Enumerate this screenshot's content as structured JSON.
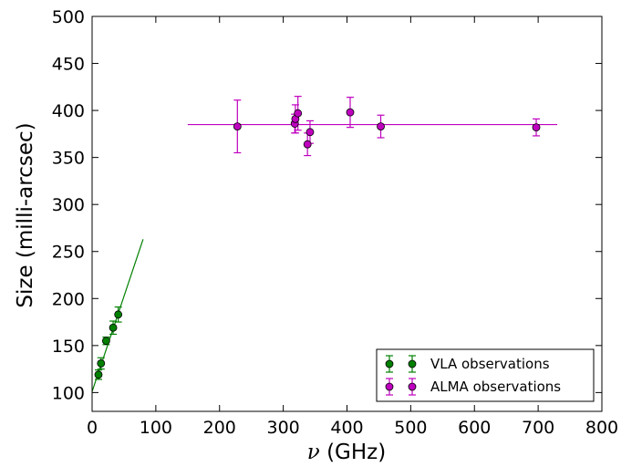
{
  "chart_data": {
    "type": "scatter",
    "xlabel_symbol": "ν",
    "xlabel": " (GHz)",
    "ylabel": "Size (milli-arcsec)",
    "xlim": [
      0,
      800
    ],
    "ylim": [
      80,
      500
    ],
    "xticks": [
      0,
      100,
      200,
      300,
      400,
      500,
      600,
      700,
      800
    ],
    "yticks": [
      100,
      150,
      200,
      250,
      300,
      350,
      400,
      450,
      500
    ],
    "grid": false,
    "legend_position": "bottom-right",
    "series": [
      {
        "name": "VLA observations",
        "color": "#008000",
        "points": [
          {
            "x": 10,
            "y": 119,
            "err": 5
          },
          {
            "x": 14,
            "y": 131,
            "err": 6
          },
          {
            "x": 22,
            "y": 155,
            "err": 4
          },
          {
            "x": 33,
            "y": 169,
            "err": 7
          },
          {
            "x": 41,
            "y": 183,
            "err": 8
          }
        ],
        "fit": {
          "x": [
            0,
            80
          ],
          "y": [
            101,
            263
          ]
        }
      },
      {
        "name": "ALMA observations",
        "color": "#bf00bf",
        "points": [
          {
            "x": 228,
            "y": 383,
            "err": 28
          },
          {
            "x": 318,
            "y": 386,
            "err": 10
          },
          {
            "x": 319,
            "y": 391,
            "err": 15
          },
          {
            "x": 323,
            "y": 397,
            "err": 18
          },
          {
            "x": 338,
            "y": 364,
            "err": 12
          },
          {
            "x": 342,
            "y": 377,
            "err": 12
          },
          {
            "x": 405,
            "y": 398,
            "err": 16
          },
          {
            "x": 453,
            "y": 383,
            "err": 12
          },
          {
            "x": 697,
            "y": 382,
            "err": 9
          }
        ],
        "fit": {
          "x": [
            150,
            730
          ],
          "y": [
            385,
            385
          ]
        }
      }
    ]
  }
}
